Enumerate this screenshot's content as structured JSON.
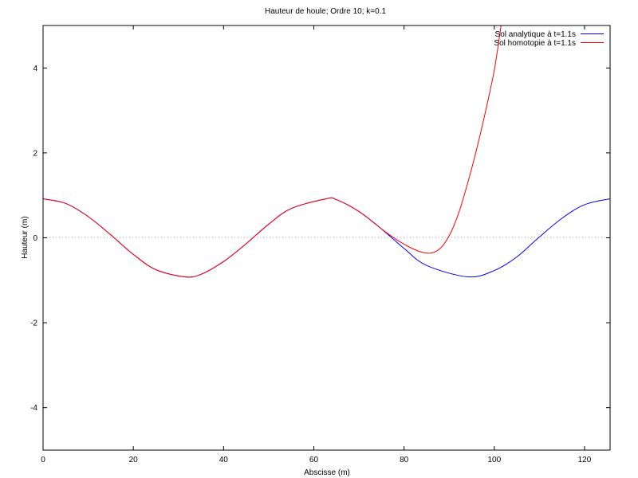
{
  "chart_data": {
    "type": "line",
    "title": "Hauteur de houle; Ordre 10; k=0.1",
    "xlabel": "Abscisse (m)",
    "ylabel": "Hauteur (m)",
    "xlim": [
      0,
      125.66
    ],
    "ylim": [
      -5,
      5
    ],
    "x_ticks": [
      "0",
      "20",
      "40",
      "60",
      "80",
      "100",
      "120"
    ],
    "y_ticks": [
      "-4",
      "-2",
      "0",
      "2",
      "4"
    ],
    "zero_line": true,
    "legend_position": "top-right",
    "series": [
      {
        "name": "Sol analytique à t=1.1s",
        "color": "#0000ff",
        "x": [
          0,
          5,
          10,
          15,
          20,
          25,
          31.4,
          35,
          40,
          45,
          50,
          55,
          62.8,
          65,
          70,
          75,
          80,
          85,
          94.2,
          100,
          105,
          110,
          115,
          120,
          125.66
        ],
        "y": [
          0.92,
          0.81,
          0.5,
          0.07,
          -0.39,
          -0.75,
          -0.92,
          -0.86,
          -0.56,
          -0.14,
          0.32,
          0.69,
          0.92,
          0.9,
          0.62,
          0.21,
          -0.25,
          -0.65,
          -0.92,
          -0.77,
          -0.45,
          0.02,
          0.46,
          0.78,
          0.92
        ]
      },
      {
        "name": "Sol homotopie à t=1.1s",
        "color": "#ff0000",
        "x": [
          0,
          5,
          10,
          15,
          20,
          25,
          31.4,
          35,
          40,
          45,
          50,
          55,
          62.8,
          65,
          70,
          75,
          78,
          80,
          82,
          84,
          86,
          88,
          90,
          92,
          94,
          96,
          98,
          100,
          101.5
        ],
        "y": [
          0.92,
          0.81,
          0.5,
          0.07,
          -0.39,
          -0.75,
          -0.92,
          -0.86,
          -0.56,
          -0.14,
          0.32,
          0.69,
          0.92,
          0.9,
          0.62,
          0.21,
          -0.02,
          -0.15,
          -0.26,
          -0.34,
          -0.36,
          -0.25,
          0.05,
          0.55,
          1.25,
          2.05,
          2.95,
          3.95,
          5.0
        ]
      }
    ]
  }
}
